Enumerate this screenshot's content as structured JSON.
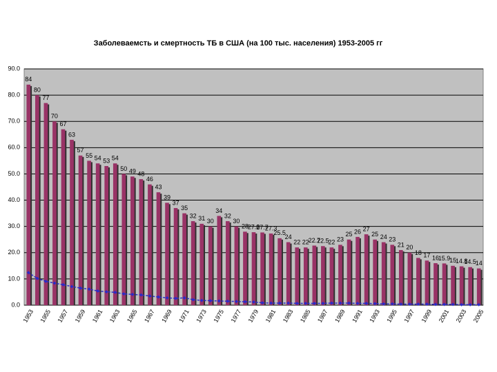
{
  "chart_data": {
    "type": "bar_line",
    "title": "Заболеваемсть и смертность ТБ в США (на 100 тыс. населения) 1953-2005 гг",
    "categories": [
      "1953",
      null,
      "1955",
      null,
      "1957",
      null,
      "1959",
      null,
      "1961",
      null,
      "1963",
      null,
      "1965",
      null,
      "1967",
      null,
      "1969",
      null,
      "1971",
      null,
      "1973",
      null,
      "1975",
      null,
      "1977",
      null,
      "1979",
      null,
      "1981",
      null,
      "1983",
      null,
      "1985",
      null,
      "1987",
      null,
      "1989",
      null,
      "1991",
      null,
      "1993",
      null,
      "1995",
      null,
      "1997",
      null,
      "1999",
      null,
      "2001",
      null,
      "2003",
      null,
      "2005"
    ],
    "series": [
      {
        "type": "bar",
        "color": "#993366",
        "values": [
          84,
          80,
          77,
          70,
          67,
          63,
          57,
          55,
          54,
          53,
          54,
          50,
          49,
          48,
          46,
          43,
          39,
          37,
          35,
          32,
          31,
          30,
          34,
          32,
          30,
          28,
          27.8,
          27.7,
          27.3,
          25.5,
          24,
          22,
          22,
          22.7,
          22.5,
          22,
          23,
          25,
          26,
          27,
          25,
          24,
          23,
          21,
          20,
          18,
          17,
          16,
          15.9,
          15,
          14.8,
          14.5,
          14
        ]
      },
      {
        "type": "line",
        "color": "#2b2bc8",
        "values": [
          12.4,
          10.2,
          9.1,
          8.4,
          7.8,
          7.1,
          6.5,
          6.1,
          5.4,
          5.1,
          4.9,
          4.3,
          4.1,
          3.9,
          3.5,
          3.1,
          2.8,
          2.6,
          2.8,
          2.1,
          1.8,
          1.7,
          1.6,
          1.5,
          1.4,
          1.3,
          1.2,
          0.9,
          0.8,
          0.8,
          0.8,
          0.7,
          0.7,
          0.7,
          0.7,
          0.8,
          0.8,
          0.8,
          0.7,
          0.7,
          0.6,
          0.5,
          0.5,
          0.4,
          0.4,
          0.4,
          0.4,
          0.3,
          0.3,
          0.3,
          0.2,
          0.2,
          0.2
        ]
      }
    ],
    "ylim": [
      0,
      90
    ],
    "yticks": [
      {
        "value": 0,
        "label": "0.0"
      },
      {
        "value": 10,
        "label": "10.0"
      },
      {
        "value": 20,
        "label": "20.0"
      },
      {
        "value": 30,
        "label": "30.0"
      },
      {
        "value": 40,
        "label": "40.0"
      },
      {
        "value": 50,
        "label": "50.0"
      },
      {
        "value": 60,
        "label": "60.0"
      },
      {
        "value": 70,
        "label": "70.0"
      },
      {
        "value": 80,
        "label": "80.0"
      },
      {
        "value": 90,
        "label": "90.0"
      }
    ],
    "grid": true
  }
}
